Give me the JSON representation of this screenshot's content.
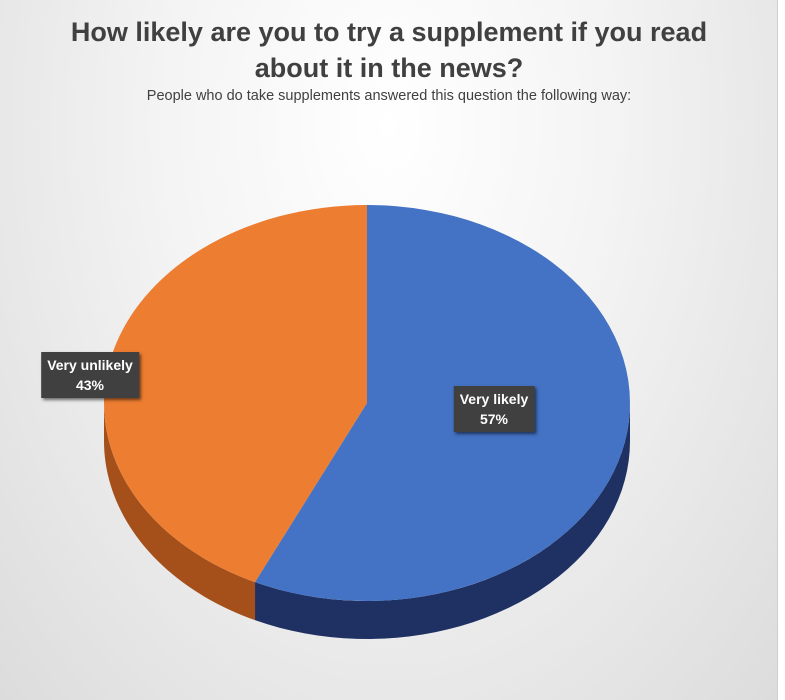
{
  "chart_data": {
    "type": "pie",
    "title": "How likely are you to try a supplement if you read about it in the news?",
    "subtitle": "People who do take supplements answered this question the following way:",
    "slices": [
      {
        "label": "Very likely",
        "value": 57,
        "value_label": "57%",
        "color": "#4472c4",
        "side_color": "#1f3163"
      },
      {
        "label": "Very unlikely",
        "value": 43,
        "value_label": "43%",
        "color": "#ed7d31",
        "side_color": "#a5501a"
      }
    ],
    "legend": "none",
    "style": "3d-pie"
  }
}
